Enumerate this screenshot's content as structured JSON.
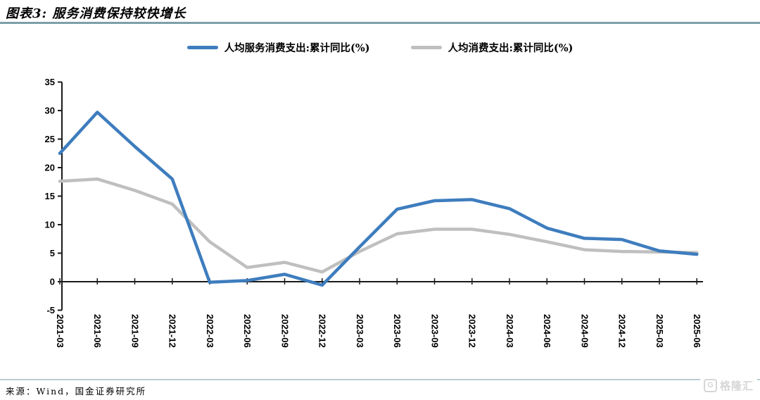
{
  "header": {
    "title": "图表3: 服务消费保持较快增长"
  },
  "chart_data": {
    "type": "line",
    "title": "",
    "xlabel": "",
    "ylabel": "",
    "categories": [
      "2021-03",
      "2021-06",
      "2021-09",
      "2021-12",
      "2022-03",
      "2022-06",
      "2022-09",
      "2022-12",
      "2023-03",
      "2023-06",
      "2023-09",
      "2023-12",
      "2024-03",
      "2024-06",
      "2024-09",
      "2024-12",
      "2025-03",
      "2025-06"
    ],
    "series": [
      {
        "name": "人均服务消费支出:累计同比(%)",
        "color": "#3E7DBE",
        "values": [
          22.5,
          29.7,
          23.7,
          18.0,
          -0.1,
          0.2,
          1.3,
          -0.6,
          6.1,
          12.7,
          14.2,
          14.4,
          12.8,
          9.4,
          7.6,
          7.4,
          5.4,
          4.8
        ]
      },
      {
        "name": "人均消费支出:累计同比(%)",
        "color": "#BFBFBF",
        "values": [
          17.6,
          18.0,
          16.0,
          13.6,
          7.0,
          2.5,
          3.4,
          1.7,
          5.3,
          8.4,
          9.2,
          9.2,
          8.3,
          7.0,
          5.6,
          5.3,
          5.2,
          5.1
        ]
      }
    ],
    "ylim": [
      -5,
      35
    ],
    "ytick_step": 5,
    "grid": false,
    "legend_position": "top",
    "axis_color": "#1a1a1a"
  },
  "footer": {
    "source": "来源：Wind，国金证券研究所"
  },
  "watermark": {
    "logo_letter": "G",
    "text": "格隆汇"
  }
}
